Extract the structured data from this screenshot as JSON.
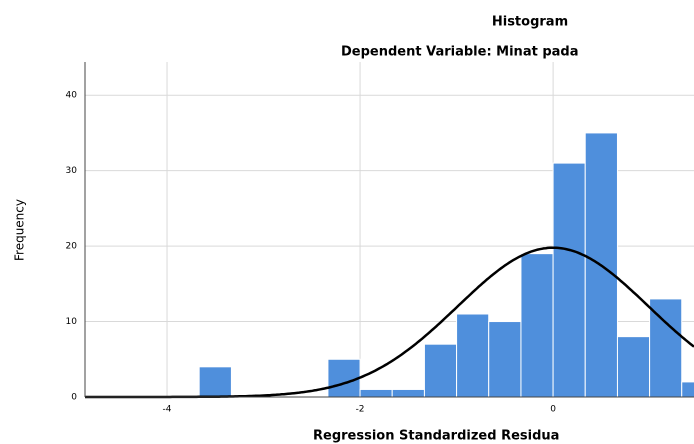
{
  "chart_data": {
    "type": "histogram",
    "title": "Histogram",
    "subtitle": "Dependent Variable: Minat pada",
    "xlabel": "Regression Standardized Residua",
    "ylabel": "Frequency",
    "bins": [
      -3.667,
      -3.333,
      -3,
      -2.667,
      -2.333,
      -2,
      -1.667,
      -1.333,
      -1,
      -0.667,
      -0.333,
      0,
      0.333,
      0.667,
      1,
      1.333,
      1.667
    ],
    "counts": [
      4,
      0,
      0,
      0,
      5,
      1,
      1,
      7,
      11,
      10,
      19,
      31,
      35,
      8,
      13,
      2
    ],
    "color": "#4f8fdc",
    "curve_color": "#000000",
    "normal_curve": {
      "mean": 0,
      "std_dev": 0.99
    },
    "xlim": [
      -4.85,
      1.46
    ],
    "ylim": [
      0,
      44.4
    ],
    "xticks": [
      -4,
      -2,
      0
    ],
    "yticks": [
      0,
      10,
      20,
      30,
      40
    ],
    "grid": true
  }
}
